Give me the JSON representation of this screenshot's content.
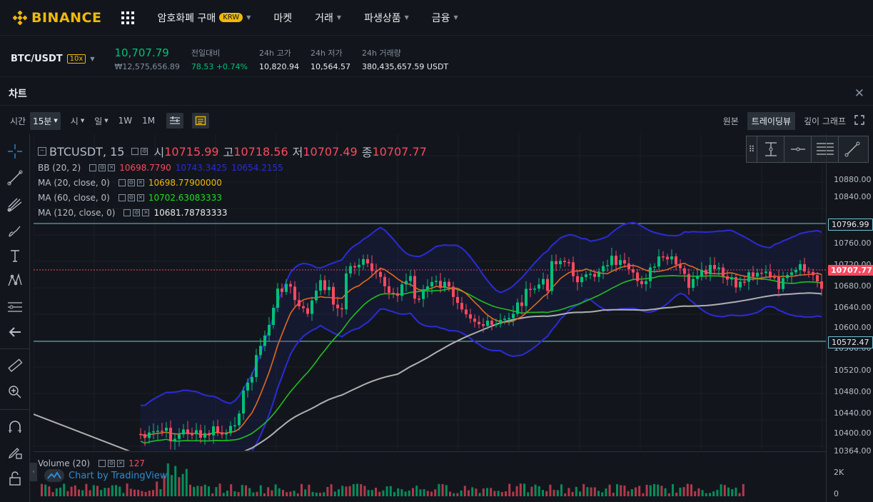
{
  "nav": {
    "logo": "BINANCE",
    "items": [
      {
        "label": "암호화폐 구매",
        "badge": "KRW",
        "caret": true
      },
      {
        "label": "마켓",
        "badge": "",
        "caret": false
      },
      {
        "label": "거래",
        "badge": "",
        "caret": true
      },
      {
        "label": "파생상품",
        "badge": "",
        "caret": true
      },
      {
        "label": "금융",
        "badge": "",
        "caret": true
      }
    ]
  },
  "ticker": {
    "pair": "BTC/USDT",
    "leverage": "10x",
    "last_price": "10,707.79",
    "krw_price": "₩12,575,656.89",
    "change_label": "전일대비",
    "change_value": "78.53 +0.74%",
    "high_label": "24h 고가",
    "high_value": "10,820.94",
    "low_label": "24h 저가",
    "low_value": "10,564.57",
    "volume_label": "24h 거래량",
    "volume_value": "380,435,657.59 USDT"
  },
  "chart_header": {
    "title": "차트"
  },
  "toolbar": {
    "time_label": "시간",
    "intervals": [
      {
        "label": "15분",
        "selected": true,
        "caret": true
      },
      {
        "label": "시",
        "selected": false,
        "caret": true
      },
      {
        "label": "일",
        "selected": false,
        "caret": true
      },
      {
        "label": "1W",
        "selected": false,
        "caret": false
      },
      {
        "label": "1M",
        "selected": false,
        "caret": false
      }
    ],
    "views": [
      {
        "label": "원본",
        "selected": false
      },
      {
        "label": "트레이딩뷰",
        "selected": true
      },
      {
        "label": "깊이 그래프",
        "selected": false
      }
    ]
  },
  "legend": {
    "symbol": "BTCUSDT, 15",
    "o_label": "시",
    "o": "10715.99",
    "h_label": "고",
    "h": "10718.56",
    "l_label": "저",
    "l": "10707.49",
    "c_label": "종",
    "c": "10707.77",
    "bb_label": "BB (20, 2)",
    "bb_vals": [
      "10698.7790",
      "10743.3425",
      "10654.2155"
    ],
    "ma20_label": "MA (20, close, 0)",
    "ma20_val": "10698.77900000",
    "ma60_label": "MA (60, close, 0)",
    "ma60_val": "10702.63083333",
    "ma120_label": "MA (120, close, 0)",
    "ma120_val": "10681.78783333"
  },
  "volume": {
    "label": "Volume (20)",
    "value": "127",
    "axis": [
      "2K",
      "0"
    ]
  },
  "branding": "Chart by TradingView",
  "price_axis": {
    "ticks": [
      "10880.00",
      "10840.00",
      "10760.00",
      "10720.00",
      "10680.00",
      "10640.00",
      "10600.00",
      "10560.00",
      "10520.00",
      "10480.00",
      "10440.00",
      "10400.00",
      "10364.00"
    ],
    "line_high": "10796.99",
    "line_low": "10572.47",
    "last": "10707.77"
  },
  "colors": {
    "up": "#02c076",
    "down": "#f84960",
    "bb": "#2b2bd8",
    "ma20": "#e06a1f",
    "ma60": "#1fbf1f",
    "ma120": "#b0b0b0",
    "accent": "#f0b90b"
  }
}
